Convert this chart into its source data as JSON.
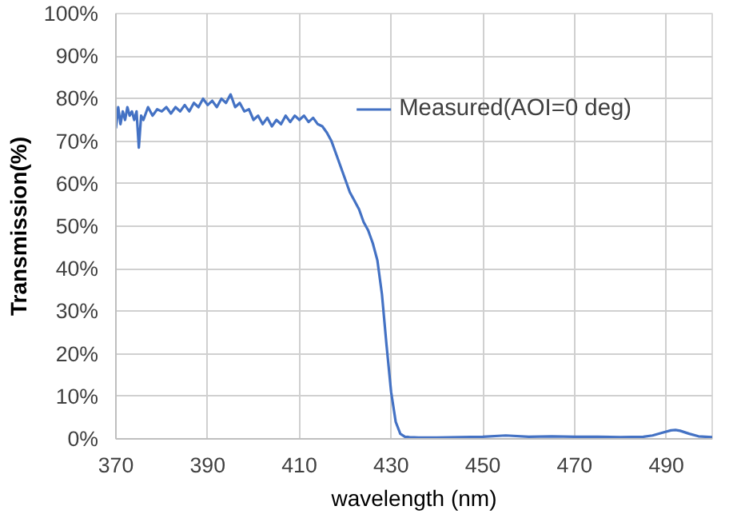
{
  "chart_data": {
    "type": "line",
    "xlabel": "wavelength (nm)",
    "ylabel": "Transmission(%)",
    "xlim": [
      370,
      500
    ],
    "xticks": [
      370,
      390,
      410,
      430,
      450,
      470,
      490
    ],
    "ylim": [
      0,
      100
    ],
    "yticks": [
      {
        "value": 0,
        "label": "0%"
      },
      {
        "value": 10,
        "label": "10%"
      },
      {
        "value": 20,
        "label": "20%"
      },
      {
        "value": 30,
        "label": "30%"
      },
      {
        "value": 40,
        "label": "40%"
      },
      {
        "value": 50,
        "label": "50%"
      },
      {
        "value": 60,
        "label": "60%"
      },
      {
        "value": 70,
        "label": "70%"
      },
      {
        "value": 80,
        "label": "80%"
      },
      {
        "value": 90,
        "label": "90%"
      },
      {
        "value": 100,
        "label": "100%"
      }
    ],
    "grid": true,
    "legend": "top right",
    "marker": "none",
    "line_style": "solid",
    "series": [
      {
        "name": "Measured(AOI=0 deg)",
        "color": "#4472c4",
        "x": [
          370,
          370.5,
          371,
          371.5,
          372,
          372.5,
          373,
          373.5,
          374,
          374.5,
          375,
          375.5,
          376,
          377,
          378,
          379,
          380,
          381,
          382,
          383,
          384,
          385,
          386,
          387,
          388,
          389,
          390,
          391,
          392,
          393,
          394,
          395,
          396,
          397,
          398,
          399,
          400,
          401,
          402,
          403,
          404,
          405,
          406,
          407,
          408,
          409,
          410,
          411,
          412,
          413,
          414,
          415,
          416,
          417,
          418,
          419,
          420,
          421,
          422,
          423,
          424,
          425,
          426,
          427,
          428,
          429,
          430,
          431,
          432,
          433,
          434,
          436,
          440,
          445,
          450,
          455,
          460,
          465,
          470,
          475,
          480,
          485,
          487,
          489,
          491,
          492,
          493,
          495,
          497,
          500
        ],
        "values": [
          73,
          78,
          74,
          77,
          75,
          78,
          76,
          77,
          75,
          77,
          68.5,
          76,
          75,
          78,
          76,
          77.5,
          77,
          78,
          76.5,
          78,
          77,
          78.5,
          77,
          79,
          78,
          80,
          78.5,
          79.5,
          78,
          80,
          79,
          81,
          78,
          79,
          77,
          77.5,
          75,
          76,
          74,
          75.5,
          73.5,
          75,
          74,
          76,
          74.5,
          76,
          75,
          76,
          74.5,
          75.5,
          74,
          73.5,
          72,
          70,
          67,
          64,
          61,
          58,
          56,
          54,
          51,
          49,
          46,
          42,
          34,
          22,
          11,
          4,
          1.2,
          0.5,
          0.4,
          0.3,
          0.3,
          0.4,
          0.5,
          0.8,
          0.5,
          0.6,
          0.5,
          0.5,
          0.4,
          0.5,
          0.8,
          1.4,
          2.0,
          2.1,
          1.9,
          1.2,
          0.6,
          0.4
        ]
      }
    ]
  }
}
